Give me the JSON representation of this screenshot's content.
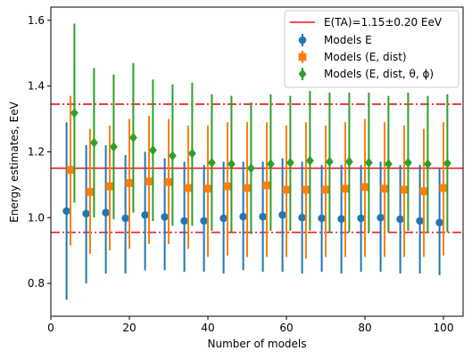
{
  "chart_data": {
    "type": "scatter",
    "title": "",
    "xlabel": "Number of models",
    "ylabel": "Energy estimates, EeV",
    "xlim": [
      0,
      105
    ],
    "ylim": [
      0.7,
      1.64
    ],
    "xticks": [
      0,
      20,
      40,
      60,
      80,
      100
    ],
    "yticks": [
      0.8,
      1.0,
      1.2,
      1.4,
      1.6
    ],
    "grid": false,
    "legend_position": "top-right",
    "reference": {
      "name": "E(TA)=1.15±0.20 EeV",
      "value": 1.15,
      "lower": 0.955,
      "upper": 1.345,
      "color": "#e8141a"
    },
    "series": [
      {
        "name": "Models E",
        "marker": "circle",
        "color": "#1f77b4",
        "x": [
          5,
          10,
          15,
          20,
          25,
          30,
          35,
          40,
          45,
          50,
          55,
          60,
          65,
          70,
          75,
          80,
          85,
          90,
          95,
          100
        ],
        "y": [
          1.02,
          1.012,
          1.015,
          0.998,
          1.008,
          1.002,
          0.99,
          0.99,
          0.998,
          1.003,
          1.003,
          1.008,
          1.0,
          0.998,
          0.996,
          0.998,
          1.0,
          0.995,
          0.99,
          0.985
        ],
        "err_low": [
          0.75,
          0.8,
          0.83,
          0.83,
          0.84,
          0.84,
          0.835,
          0.835,
          0.83,
          0.84,
          0.835,
          0.835,
          0.83,
          0.835,
          0.83,
          0.835,
          0.835,
          0.83,
          0.83,
          0.825
        ],
        "err_high": [
          1.29,
          1.22,
          1.22,
          1.19,
          1.2,
          1.18,
          1.17,
          1.16,
          1.17,
          1.17,
          1.17,
          1.18,
          1.17,
          1.16,
          1.16,
          1.16,
          1.17,
          1.16,
          1.16,
          1.15
        ]
      },
      {
        "name": "Models (E, dist)",
        "marker": "square",
        "color": "#ff7f0e",
        "x": [
          5,
          10,
          15,
          20,
          25,
          30,
          35,
          40,
          45,
          50,
          55,
          60,
          65,
          70,
          75,
          80,
          85,
          90,
          95,
          100
        ],
        "y": [
          1.145,
          1.078,
          1.095,
          1.105,
          1.11,
          1.108,
          1.09,
          1.088,
          1.095,
          1.09,
          1.098,
          1.085,
          1.085,
          1.085,
          1.088,
          1.093,
          1.088,
          1.085,
          1.08,
          1.09
        ],
        "err_low": [
          0.915,
          0.89,
          0.9,
          0.905,
          0.92,
          0.92,
          0.905,
          0.88,
          0.885,
          0.88,
          0.88,
          0.88,
          0.875,
          0.88,
          0.88,
          0.88,
          0.88,
          0.88,
          0.88,
          0.885
        ],
        "err_high": [
          1.37,
          1.27,
          1.28,
          1.3,
          1.31,
          1.3,
          1.28,
          1.28,
          1.29,
          1.29,
          1.29,
          1.28,
          1.29,
          1.28,
          1.29,
          1.3,
          1.29,
          1.28,
          1.27,
          1.29
        ]
      },
      {
        "name": "Models (E, dist, θ, ϕ)",
        "marker": "diamond",
        "color": "#2ca02c",
        "x": [
          5,
          10,
          15,
          20,
          25,
          30,
          35,
          40,
          45,
          50,
          55,
          60,
          65,
          70,
          75,
          80,
          85,
          90,
          95,
          100
        ],
        "y": [
          1.318,
          1.228,
          1.215,
          1.243,
          1.205,
          1.188,
          1.195,
          1.167,
          1.163,
          1.15,
          1.163,
          1.167,
          1.173,
          1.17,
          1.17,
          1.167,
          1.163,
          1.167,
          1.163,
          1.165
        ],
        "err_low": [
          1.045,
          1.0,
          0.995,
          1.015,
          0.99,
          0.975,
          0.975,
          0.96,
          0.955,
          0.95,
          0.96,
          0.96,
          0.96,
          0.955,
          0.955,
          0.955,
          0.955,
          0.96,
          0.955,
          0.955
        ],
        "err_high": [
          1.59,
          1.455,
          1.435,
          1.47,
          1.42,
          1.405,
          1.41,
          1.375,
          1.37,
          1.35,
          1.375,
          1.37,
          1.385,
          1.38,
          1.38,
          1.38,
          1.37,
          1.38,
          1.37,
          1.375
        ]
      }
    ]
  }
}
